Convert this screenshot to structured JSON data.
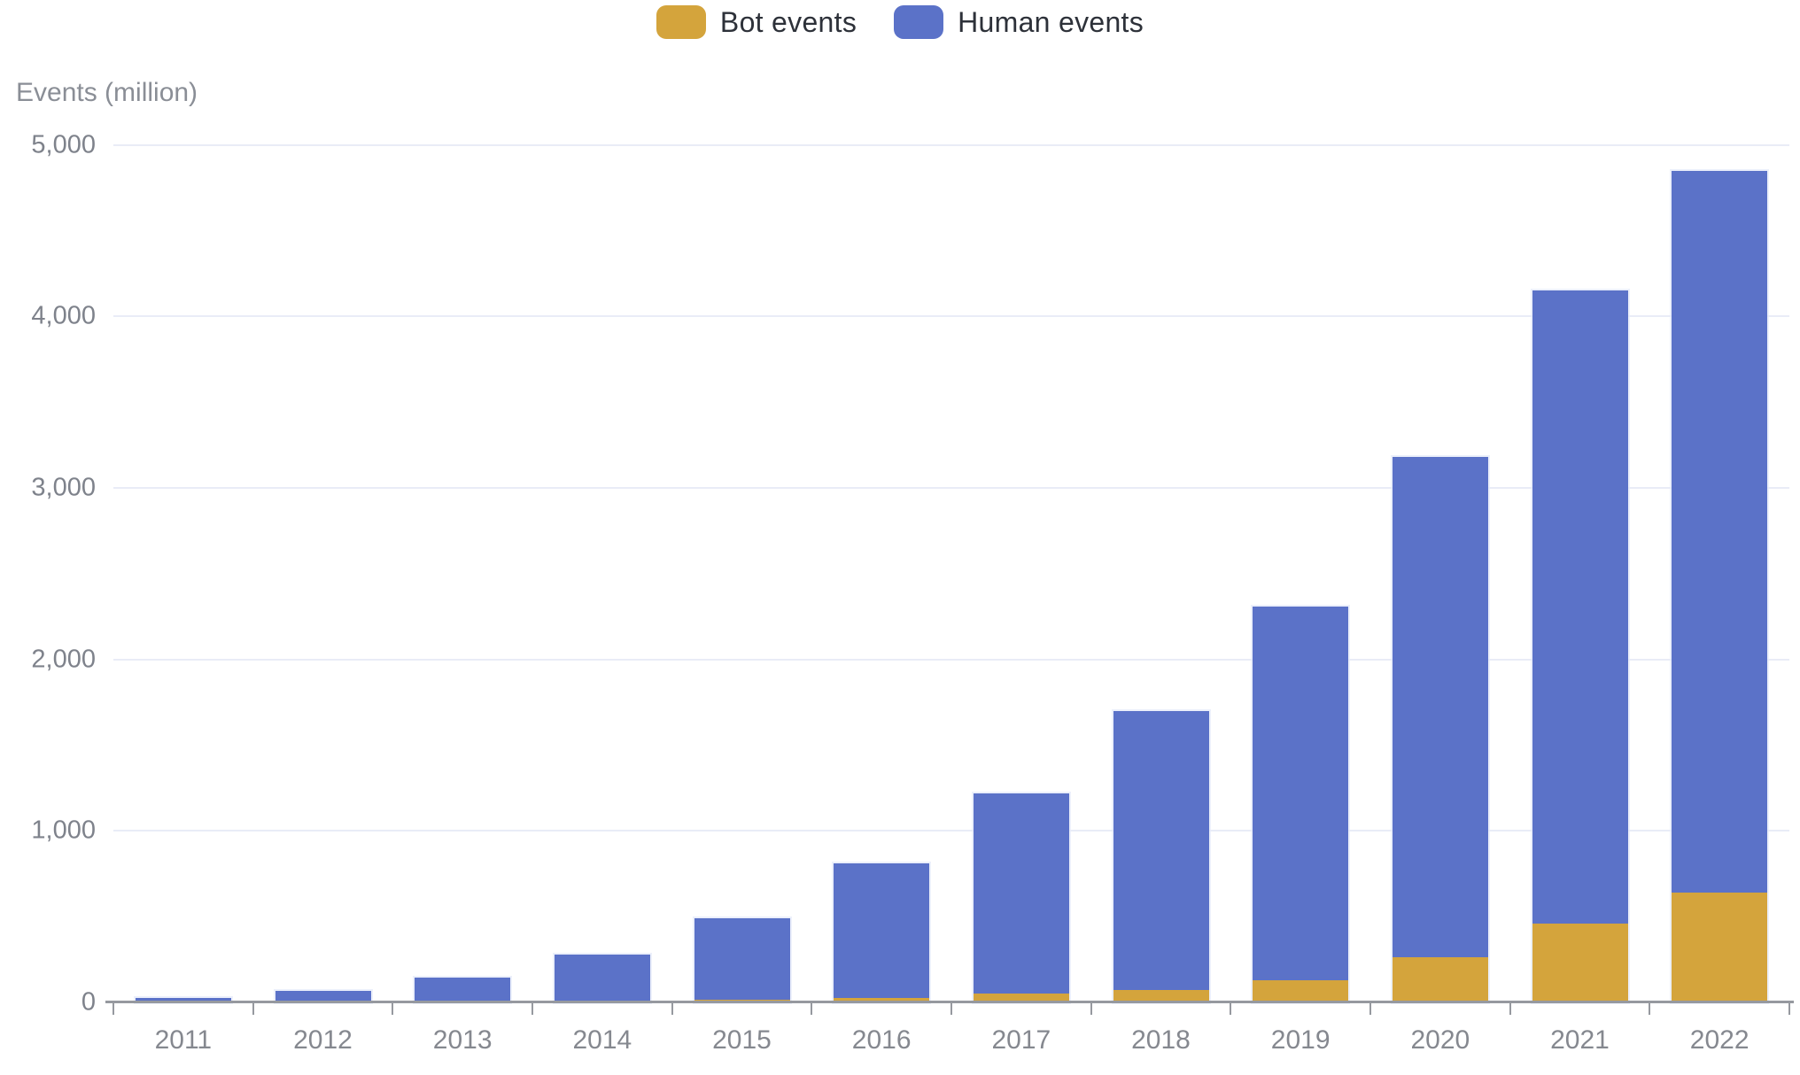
{
  "chart_data": {
    "type": "bar",
    "stacked": true,
    "title": "",
    "ylabel": "Events (million)",
    "xlabel": "",
    "categories": [
      "2011",
      "2012",
      "2013",
      "2014",
      "2015",
      "2016",
      "2017",
      "2018",
      "2019",
      "2020",
      "2021",
      "2022"
    ],
    "series": [
      {
        "name": "Bot events",
        "color": "#d4a43c",
        "values": [
          0,
          0,
          0,
          0,
          15,
          25,
          50,
          70,
          130,
          265,
          460,
          640
        ]
      },
      {
        "name": "Human events",
        "color": "#5b72c8",
        "values": [
          25,
          65,
          145,
          280,
          475,
          785,
          1170,
          1630,
          2180,
          2915,
          3690,
          4210
        ]
      }
    ],
    "totals": [
      25,
      65,
      145,
      280,
      490,
      810,
      1220,
      1700,
      2310,
      3180,
      4150,
      4850
    ],
    "ylim": [
      0,
      5000
    ],
    "ytick_interval": 1000,
    "yticks": [
      "0",
      "1,000",
      "2,000",
      "3,000",
      "4,000",
      "5,000"
    ],
    "grid": true,
    "legend_position": "top-center"
  },
  "legend": {
    "items": [
      {
        "label": "Bot events",
        "color": "#d4a43c"
      },
      {
        "label": "Human events",
        "color": "#5b72c8"
      }
    ]
  },
  "axis": {
    "y_title": "Events (million)"
  },
  "colors": {
    "bot": "#d4a43c",
    "human": "#5b72c8",
    "gridline": "#e9ecf7",
    "axis_line": "#96999f",
    "tick_label": "#7e828b",
    "legend_text": "#2d3139",
    "background": "#ffffff"
  }
}
